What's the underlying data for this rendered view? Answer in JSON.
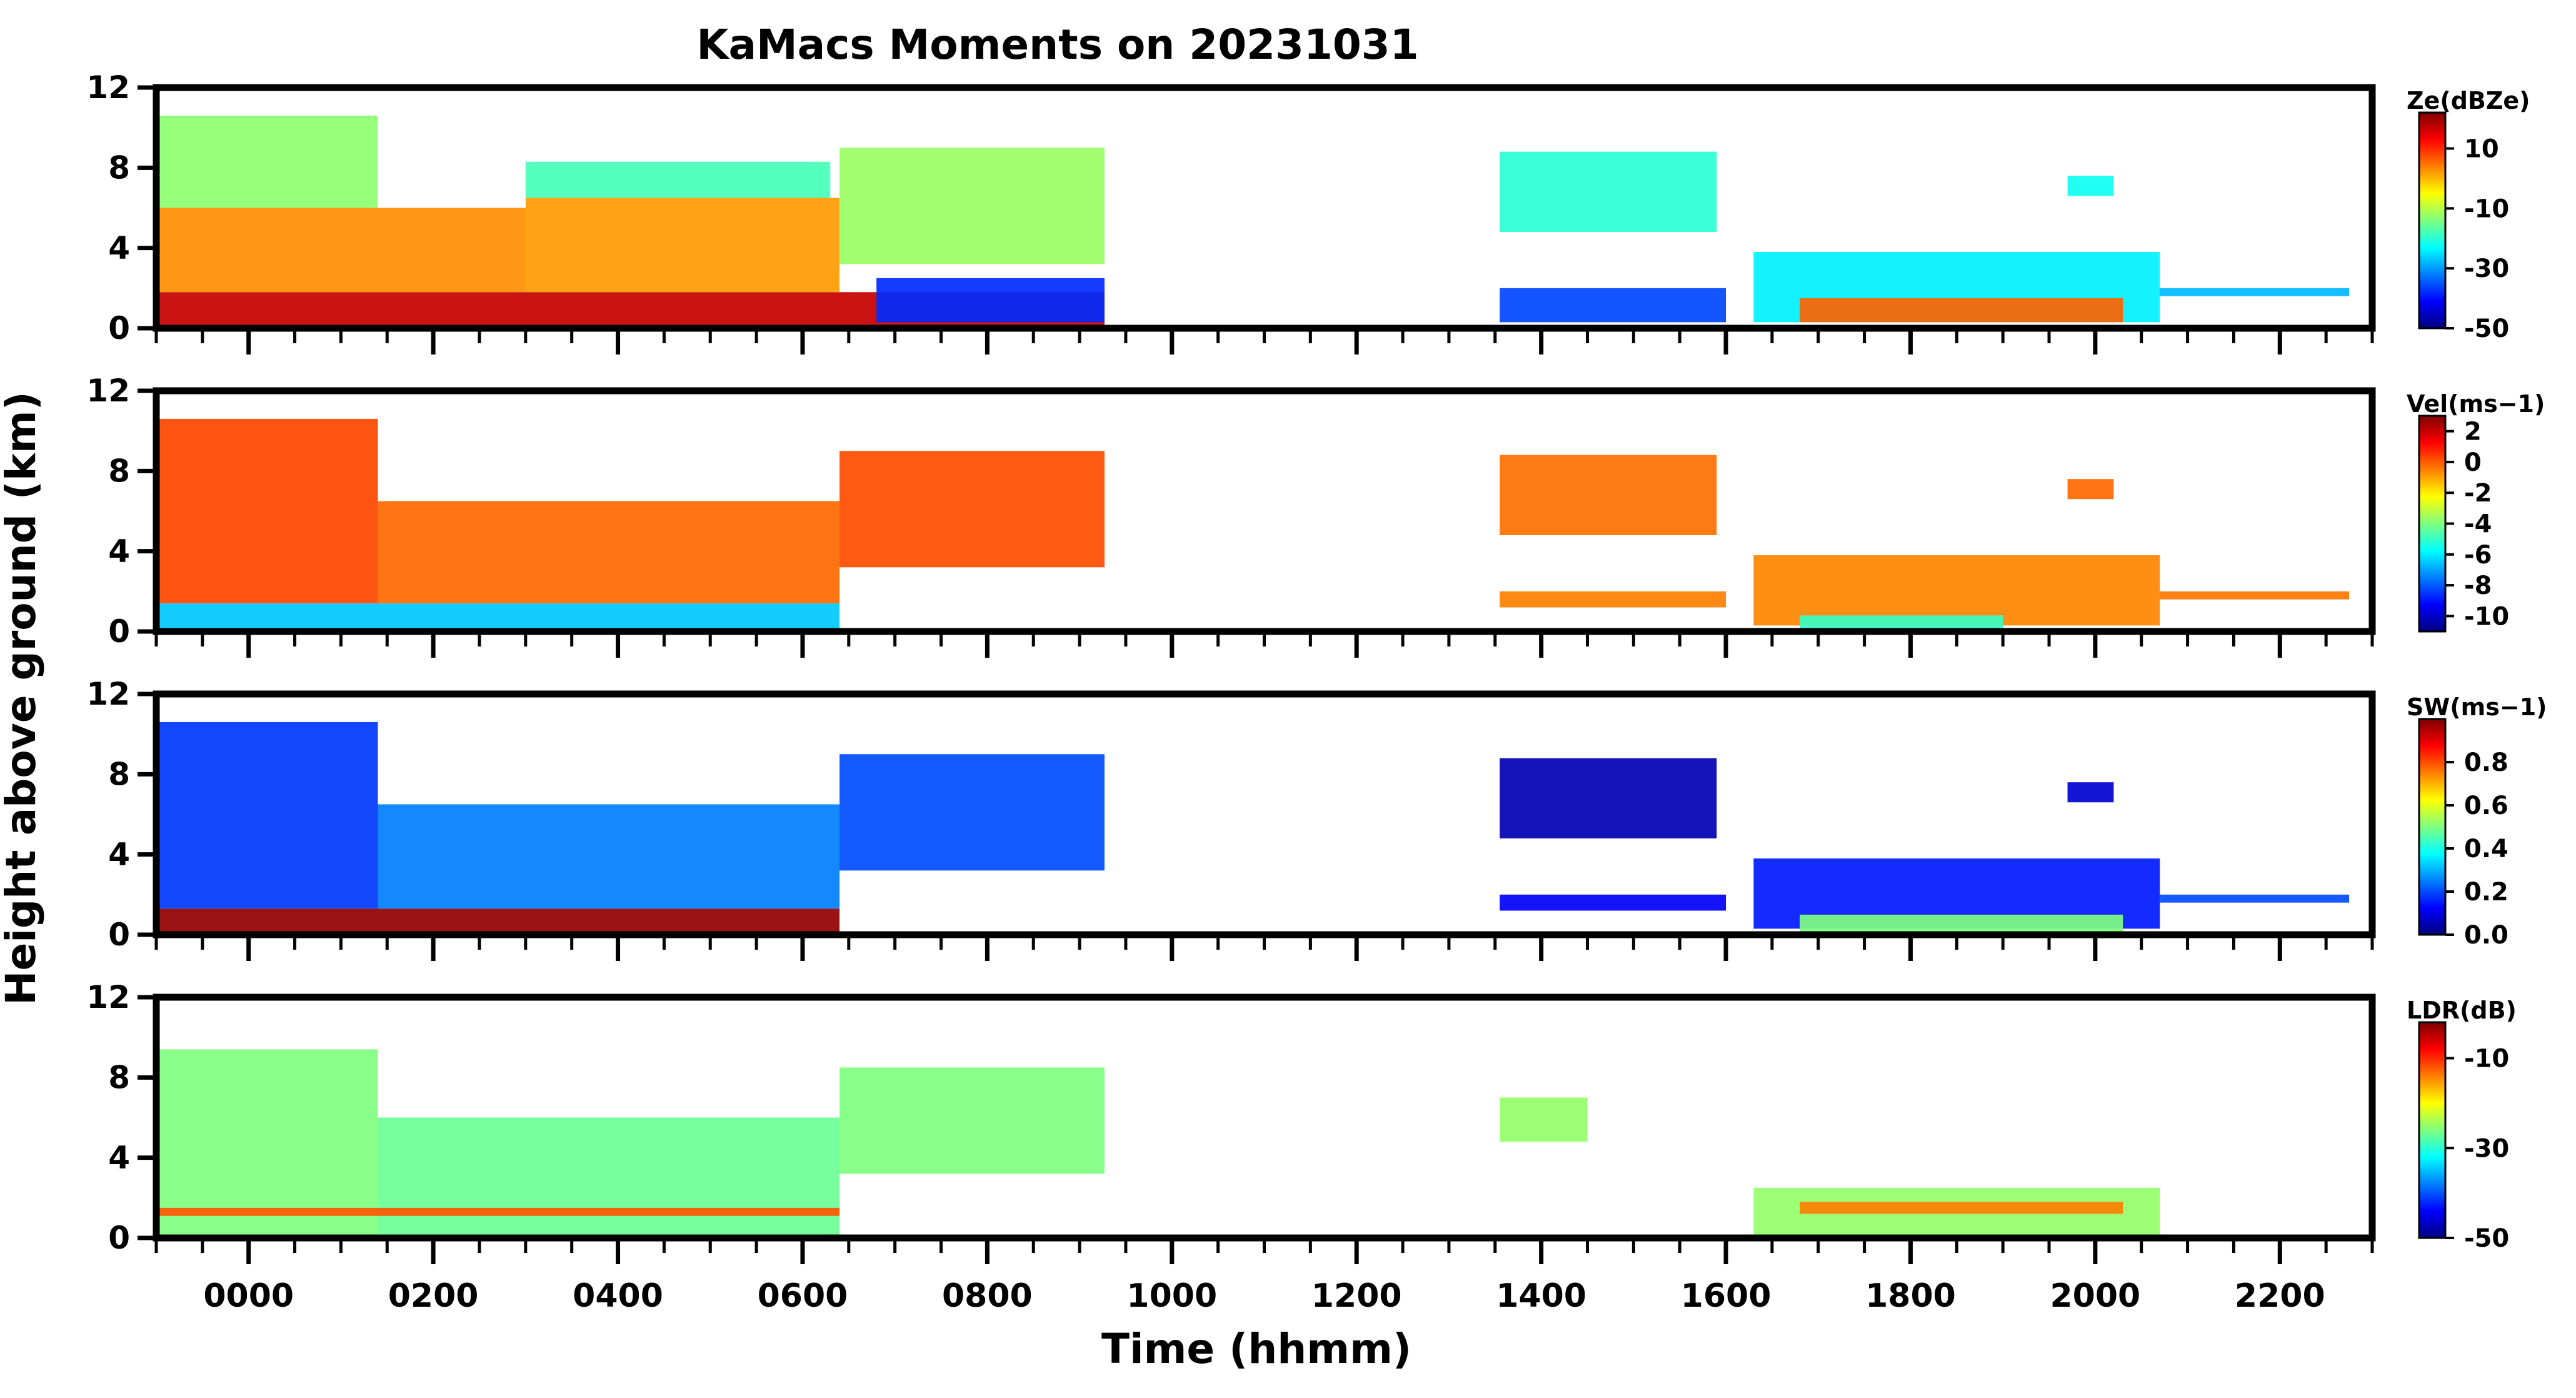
{
  "chart_data": {
    "type": "heatmap",
    "title": "KaMacs Moments on 20231031",
    "xlabel": "Time (hhmm)",
    "ylabel": "Height above ground (km)",
    "x_unit": "hours since 0000",
    "xlim": [
      -1.0,
      23.0
    ],
    "xticks": [
      {
        "label": "0000",
        "value": 0
      },
      {
        "label": "0200",
        "value": 2
      },
      {
        "label": "0400",
        "value": 4
      },
      {
        "label": "0600",
        "value": 6
      },
      {
        "label": "0800",
        "value": 8
      },
      {
        "label": "1000",
        "value": 10
      },
      {
        "label": "1200",
        "value": 12
      },
      {
        "label": "1400",
        "value": 14
      },
      {
        "label": "1600",
        "value": 16
      },
      {
        "label": "1800",
        "value": 18
      },
      {
        "label": "2000",
        "value": 20
      },
      {
        "label": "2200",
        "value": 22
      }
    ],
    "ylim": [
      0,
      12
    ],
    "yticks": [
      {
        "label": "0",
        "value": 0
      },
      {
        "label": "4",
        "value": 4
      },
      {
        "label": "8",
        "value": 8
      },
      {
        "label": "12",
        "value": 12
      }
    ],
    "colormap": [
      "#00007f",
      "#0000ff",
      "#007fff",
      "#00ffff",
      "#7fff7f",
      "#ffff00",
      "#ff7f00",
      "#ff0000",
      "#7f0000"
    ],
    "panels": [
      {
        "id": "ze",
        "colorbar_label": "Ze(dBZe)",
        "vmin": -50,
        "vmax": 22,
        "cticks": [
          {
            "label": "10",
            "value": 10
          },
          {
            "label": "-10",
            "value": -10
          },
          {
            "label": "-30",
            "value": -30
          },
          {
            "label": "-50",
            "value": -50
          }
        ],
        "regions": [
          {
            "t0": -0.97,
            "t1": 9.27,
            "h0": 0.0,
            "h1": 1.8,
            "value": 17
          },
          {
            "t0": -0.97,
            "t1": 3.0,
            "h0": 1.8,
            "h1": 6.0,
            "value": 3
          },
          {
            "t0": 3.0,
            "t1": 6.4,
            "h0": 1.8,
            "h1": 6.5,
            "value": 2
          },
          {
            "t0": -0.97,
            "t1": 1.4,
            "h0": 6.0,
            "h1": 10.6,
            "value": -13
          },
          {
            "t0": 3.0,
            "t1": 6.3,
            "h0": 6.5,
            "h1": 8.3,
            "value": -18
          },
          {
            "t0": 6.4,
            "t1": 9.27,
            "h0": 3.2,
            "h1": 9.0,
            "value": -12
          },
          {
            "t0": 6.8,
            "t1": 9.27,
            "h0": 0.3,
            "h1": 2.5,
            "value": -38
          },
          {
            "t0": 13.55,
            "t1": 15.9,
            "h0": 4.8,
            "h1": 8.8,
            "value": -20
          },
          {
            "t0": 13.55,
            "t1": 16.0,
            "h0": 0.3,
            "h1": 2.0,
            "value": -36
          },
          {
            "t0": 16.3,
            "t1": 20.7,
            "h0": 0.3,
            "h1": 3.8,
            "value": -24
          },
          {
            "t0": 16.8,
            "t1": 20.3,
            "h0": 0.3,
            "h1": 1.5,
            "value": 6
          },
          {
            "t0": 20.7,
            "t1": 22.75,
            "h0": 1.6,
            "h1": 2.0,
            "value": -28
          },
          {
            "t0": 19.7,
            "t1": 20.2,
            "h0": 6.6,
            "h1": 7.6,
            "value": -22
          }
        ]
      },
      {
        "id": "vel",
        "colorbar_label": "Vel(ms−1)",
        "vmin": -11,
        "vmax": 3,
        "cticks": [
          {
            "label": "2",
            "value": 2
          },
          {
            "label": "0",
            "value": 0
          },
          {
            "label": "-2",
            "value": -2
          },
          {
            "label": "-4",
            "value": -4
          },
          {
            "label": "-6",
            "value": -6
          },
          {
            "label": "-8",
            "value": -8
          },
          {
            "label": "-10",
            "value": -10
          }
        ],
        "regions": [
          {
            "t0": -0.97,
            "t1": 6.4,
            "h0": 0.0,
            "h1": 1.4,
            "value": -6.5
          },
          {
            "t0": -0.97,
            "t1": 1.4,
            "h0": 1.4,
            "h1": 10.6,
            "value": 0.3
          },
          {
            "t0": 1.4,
            "t1": 6.4,
            "h0": 1.4,
            "h1": 6.5,
            "value": -0.2
          },
          {
            "t0": 6.4,
            "t1": 9.27,
            "h0": 3.2,
            "h1": 9.0,
            "value": 0.2
          },
          {
            "t0": 13.55,
            "t1": 15.9,
            "h0": 4.8,
            "h1": 8.8,
            "value": -0.3
          },
          {
            "t0": 13.55,
            "t1": 16.0,
            "h0": 1.2,
            "h1": 2.0,
            "value": -0.5
          },
          {
            "t0": 16.3,
            "t1": 20.7,
            "h0": 0.3,
            "h1": 3.8,
            "value": -0.6
          },
          {
            "t0": 16.8,
            "t1": 19.0,
            "h0": 0.0,
            "h1": 0.8,
            "value": -5.0
          },
          {
            "t0": 20.7,
            "t1": 22.75,
            "h0": 1.6,
            "h1": 2.0,
            "value": -0.4
          },
          {
            "t0": 19.7,
            "t1": 20.2,
            "h0": 6.6,
            "h1": 7.6,
            "value": -0.2
          }
        ]
      },
      {
        "id": "sw",
        "colorbar_label": "SW(ms−1)",
        "vmin": 0.0,
        "vmax": 1.0,
        "cticks": [
          {
            "label": "0.8",
            "value": 0.8
          },
          {
            "label": "0.6",
            "value": 0.6
          },
          {
            "label": "0.4",
            "value": 0.4
          },
          {
            "label": "0.2",
            "value": 0.2
          },
          {
            "label": "0.0",
            "value": 0.0
          }
        ],
        "regions": [
          {
            "t0": -0.97,
            "t1": 6.4,
            "h0": 0.0,
            "h1": 1.3,
            "value": 0.98
          },
          {
            "t0": -0.97,
            "t1": 1.4,
            "h0": 1.3,
            "h1": 10.6,
            "value": 0.18
          },
          {
            "t0": 1.4,
            "t1": 6.4,
            "h0": 1.3,
            "h1": 6.5,
            "value": 0.25
          },
          {
            "t0": 6.4,
            "t1": 9.27,
            "h0": 3.2,
            "h1": 9.0,
            "value": 0.2
          },
          {
            "t0": 13.55,
            "t1": 15.9,
            "h0": 4.8,
            "h1": 8.8,
            "value": 0.05
          },
          {
            "t0": 13.55,
            "t1": 16.0,
            "h0": 1.2,
            "h1": 2.0,
            "value": 0.12
          },
          {
            "t0": 16.3,
            "t1": 20.7,
            "h0": 0.3,
            "h1": 3.8,
            "value": 0.15
          },
          {
            "t0": 16.8,
            "t1": 20.3,
            "h0": 0.0,
            "h1": 1.0,
            "value": 0.5
          },
          {
            "t0": 20.7,
            "t1": 22.75,
            "h0": 1.6,
            "h1": 2.0,
            "value": 0.2
          },
          {
            "t0": 19.7,
            "t1": 20.2,
            "h0": 6.6,
            "h1": 7.6,
            "value": 0.08
          }
        ]
      },
      {
        "id": "ldr",
        "colorbar_label": "LDR(dB)",
        "vmin": -50,
        "vmax": -2,
        "cticks": [
          {
            "label": "-10",
            "value": -10
          },
          {
            "label": "-30",
            "value": -30
          },
          {
            "label": "-50",
            "value": -50
          }
        ],
        "regions": [
          {
            "t0": -0.97,
            "t1": 1.4,
            "h0": 0.0,
            "h1": 9.4,
            "value": -26
          },
          {
            "t0": 1.4,
            "t1": 6.4,
            "h0": 0.0,
            "h1": 6.0,
            "value": -27
          },
          {
            "t0": 6.4,
            "t1": 9.27,
            "h0": 3.2,
            "h1": 8.5,
            "value": -26
          },
          {
            "t0": -0.97,
            "t1": 6.4,
            "h0": 1.1,
            "h1": 1.5,
            "value": -12
          },
          {
            "t0": 13.55,
            "t1": 14.5,
            "h0": 4.8,
            "h1": 7.0,
            "value": -25
          },
          {
            "t0": 16.3,
            "t1": 20.7,
            "h0": 0.0,
            "h1": 2.5,
            "value": -25
          },
          {
            "t0": 16.8,
            "t1": 20.3,
            "h0": 1.2,
            "h1": 1.8,
            "value": -14
          }
        ]
      }
    ]
  }
}
